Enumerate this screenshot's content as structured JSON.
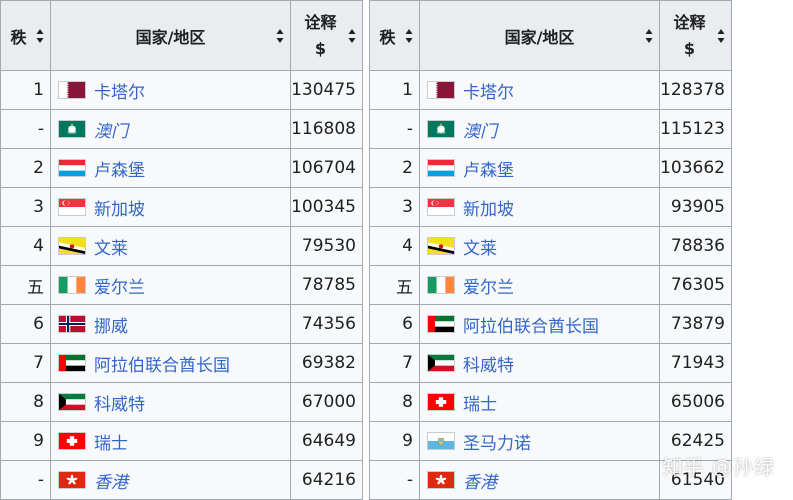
{
  "headers": {
    "rank": "秩",
    "country": "国家/地区",
    "value_line1": "诠释",
    "value_line2": "$"
  },
  "icons": {
    "sort": "sort-arrows-icon"
  },
  "tables": [
    {
      "rows": [
        {
          "rank": "1",
          "flag": "qatar-flag-icon",
          "country": "卡塔尔",
          "italic": false,
          "value": "130475"
        },
        {
          "rank": "-",
          "flag": "macau-flag-icon",
          "country": "澳门",
          "italic": true,
          "value": "116808"
        },
        {
          "rank": "2",
          "flag": "luxembourg-flag-icon",
          "country": "卢森堡",
          "italic": false,
          "value": "106704"
        },
        {
          "rank": "3",
          "flag": "singapore-flag-icon",
          "country": "新加坡",
          "italic": false,
          "value": "100345"
        },
        {
          "rank": "4",
          "flag": "brunei-flag-icon",
          "country": "文莱",
          "italic": false,
          "value": "79530"
        },
        {
          "rank": "五",
          "flag": "ireland-flag-icon",
          "country": "爱尔兰",
          "italic": false,
          "value": "78785"
        },
        {
          "rank": "6",
          "flag": "norway-flag-icon",
          "country": "挪威",
          "italic": false,
          "value": "74356"
        },
        {
          "rank": "7",
          "flag": "uae-flag-icon",
          "country": "阿拉伯联合酋长国",
          "italic": false,
          "value": "69382"
        },
        {
          "rank": "8",
          "flag": "kuwait-flag-icon",
          "country": "科威特",
          "italic": false,
          "value": "67000"
        },
        {
          "rank": "9",
          "flag": "switzerland-flag-icon",
          "country": "瑞士",
          "italic": false,
          "value": "64649"
        },
        {
          "rank": "-",
          "flag": "hong-kong-flag-icon",
          "country": "香港",
          "italic": true,
          "value": "64216"
        }
      ]
    },
    {
      "rows": [
        {
          "rank": "1",
          "flag": "qatar-flag-icon",
          "country": "卡塔尔",
          "italic": false,
          "value": "128378"
        },
        {
          "rank": "-",
          "flag": "macau-flag-icon",
          "country": "澳门",
          "italic": true,
          "value": "115123"
        },
        {
          "rank": "2",
          "flag": "luxembourg-flag-icon",
          "country": "卢森堡",
          "italic": false,
          "value": "103662"
        },
        {
          "rank": "3",
          "flag": "singapore-flag-icon",
          "country": "新加坡",
          "italic": false,
          "value": "93905"
        },
        {
          "rank": "4",
          "flag": "brunei-flag-icon",
          "country": "文莱",
          "italic": false,
          "value": "78836"
        },
        {
          "rank": "五",
          "flag": "ireland-flag-icon",
          "country": "爱尔兰",
          "italic": false,
          "value": "76305"
        },
        {
          "rank": "6",
          "flag": "uae-flag-icon",
          "country": "阿拉伯联合酋长国",
          "italic": false,
          "value": "73879"
        },
        {
          "rank": "7",
          "flag": "kuwait-flag-icon",
          "country": "科威特",
          "italic": false,
          "value": "71943"
        },
        {
          "rank": "8",
          "flag": "switzerland-flag-icon",
          "country": "瑞士",
          "italic": false,
          "value": "65006"
        },
        {
          "rank": "9",
          "flag": "san-marino-flag-icon",
          "country": "圣马力诺",
          "italic": false,
          "value": "62425"
        },
        {
          "rank": "-",
          "flag": "hong-kong-flag-icon",
          "country": "香港",
          "italic": true,
          "value": "61540"
        }
      ]
    }
  ],
  "watermark": "知乎 @孙绿"
}
